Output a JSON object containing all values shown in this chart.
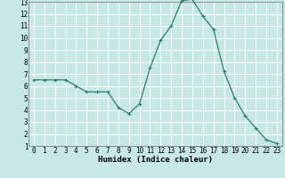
{
  "x": [
    0,
    1,
    2,
    3,
    4,
    5,
    6,
    7,
    8,
    9,
    10,
    11,
    12,
    13,
    14,
    15,
    16,
    17,
    18,
    19,
    20,
    21,
    22,
    23
  ],
  "y": [
    6.5,
    6.5,
    6.5,
    6.5,
    6.0,
    5.5,
    5.5,
    5.5,
    4.2,
    3.7,
    4.5,
    7.5,
    9.8,
    11.0,
    13.1,
    13.2,
    11.8,
    10.7,
    7.2,
    5.0,
    3.5,
    2.5,
    1.5,
    1.2
  ],
  "line_color": "#2e7d6e",
  "marker": "+",
  "bg_color": "#c8e8e8",
  "grid_color": "#ffffff",
  "xlabel": "Humidex (Indice chaleur)",
  "xlim": [
    -0.5,
    23.5
  ],
  "ylim": [
    1,
    13
  ],
  "xtick_labels": [
    "0",
    "1",
    "2",
    "3",
    "4",
    "5",
    "6",
    "7",
    "8",
    "9",
    "10",
    "11",
    "12",
    "13",
    "14",
    "15",
    "16",
    "17",
    "18",
    "19",
    "20",
    "21",
    "22",
    "23"
  ],
  "ytick_labels": [
    "1",
    "2",
    "3",
    "4",
    "5",
    "6",
    "7",
    "8",
    "9",
    "10",
    "11",
    "12",
    "13"
  ],
  "yticks": [
    1,
    2,
    3,
    4,
    5,
    6,
    7,
    8,
    9,
    10,
    11,
    12,
    13
  ],
  "xlabel_fontsize": 6.5,
  "tick_fontsize": 5.5,
  "marker_size": 3,
  "line_width": 0.9
}
